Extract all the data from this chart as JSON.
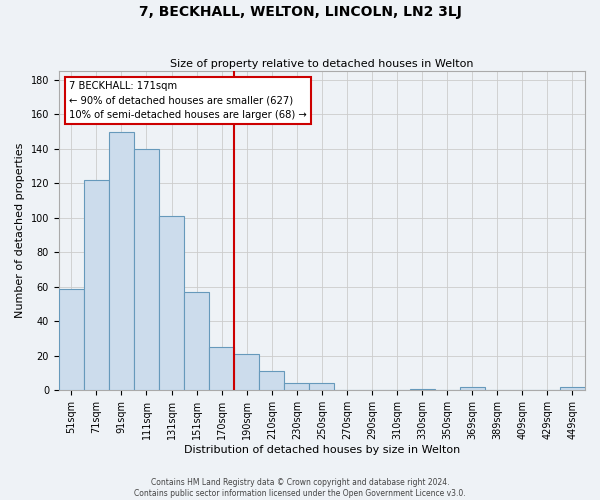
{
  "title": "7, BECKHALL, WELTON, LINCOLN, LN2 3LJ",
  "subtitle": "Size of property relative to detached houses in Welton",
  "xlabel": "Distribution of detached houses by size in Welton",
  "ylabel": "Number of detached properties",
  "bar_labels": [
    "51sqm",
    "71sqm",
    "91sqm",
    "111sqm",
    "131sqm",
    "151sqm",
    "170sqm",
    "190sqm",
    "210sqm",
    "230sqm",
    "250sqm",
    "270sqm",
    "290sqm",
    "310sqm",
    "330sqm",
    "350sqm",
    "369sqm",
    "389sqm",
    "409sqm",
    "429sqm",
    "449sqm"
  ],
  "bar_heights": [
    59,
    122,
    150,
    140,
    101,
    57,
    25,
    21,
    11,
    4,
    4,
    0,
    0,
    0,
    1,
    0,
    2,
    0,
    0,
    0,
    2
  ],
  "bar_color": "#ccdcec",
  "bar_edge_color": "#6699bb",
  "annotation_title": "7 BECKHALL: 171sqm",
  "annotation_line1": "← 90% of detached houses are smaller (627)",
  "annotation_line2": "10% of semi-detached houses are larger (68) →",
  "vline_color": "#cc0000",
  "ylim": [
    0,
    185
  ],
  "footer_line1": "Contains HM Land Registry data © Crown copyright and database right 2024.",
  "footer_line2": "Contains public sector information licensed under the Open Government Licence v3.0.",
  "annotation_box_facecolor": "#ffffff",
  "annotation_box_edgecolor": "#cc0000",
  "background_color": "#eef2f6",
  "grid_color": "#cccccc",
  "title_fontsize": 10,
  "subtitle_fontsize": 8,
  "ylabel_fontsize": 8,
  "xlabel_fontsize": 8,
  "tick_fontsize": 7,
  "footer_fontsize": 5.5
}
